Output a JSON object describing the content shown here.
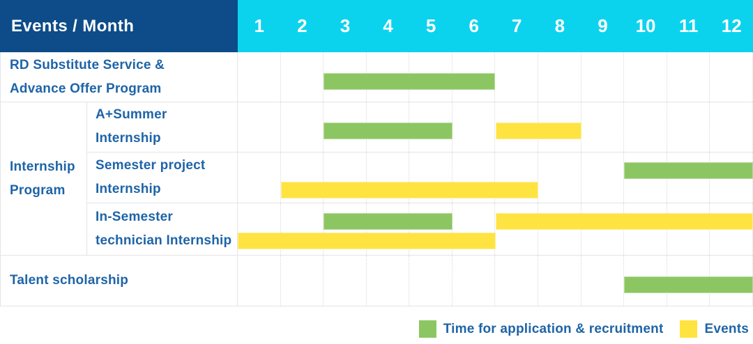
{
  "header": {
    "title": "Events / Month",
    "months": [
      "1",
      "2",
      "3",
      "4",
      "5",
      "6",
      "7",
      "8",
      "9",
      "10",
      "11",
      "12"
    ]
  },
  "legend": {
    "items": [
      {
        "key": "application",
        "label": "Time for application & recruitment",
        "color": "#8CC663"
      },
      {
        "key": "events",
        "label": "Events",
        "color": "#FFE340"
      }
    ]
  },
  "colors": {
    "header_bg": "#0D4C88",
    "months_bg": "#0BD3EE",
    "label_text": "#1E64A7",
    "bar_green": "#8CC663",
    "bar_yellow": "#FFE340",
    "grid_line": "#E4E4E4"
  },
  "chart_data": {
    "type": "gantt",
    "unit": "month",
    "x_domain": [
      1,
      12
    ],
    "x_ticks": [
      1,
      2,
      3,
      4,
      5,
      6,
      7,
      8,
      9,
      10,
      11,
      12
    ],
    "legend": {
      "green": "Time for application & recruitment",
      "yellow": "Events"
    },
    "groups": {
      "Internship Program": {
        "label_lines": [
          "Internship",
          "Program"
        ]
      }
    },
    "rows": [
      {
        "group": "",
        "label": "RD Substitute Service & Advance Offer Program",
        "label_lines": [
          "RD Substitute Service &",
          "Advance Offer Program"
        ],
        "lines": [
          [
            {
              "color": "green",
              "start_month": 3,
              "end_month": 6
            }
          ]
        ]
      },
      {
        "group": "Internship Program",
        "label": "A+Summer Internship",
        "label_lines": [
          "A+Summer",
          "Internship"
        ],
        "lines": [
          [
            {
              "color": "green",
              "start_month": 3,
              "end_month": 5
            },
            {
              "color": "yellow",
              "start_month": 7,
              "end_month": 8
            }
          ]
        ]
      },
      {
        "group": "Internship Program",
        "label": "Semester project Internship",
        "label_lines": [
          "Semester project",
          "Internship"
        ],
        "lines": [
          [
            {
              "color": "green",
              "start_month": 10,
              "end_month": 12
            }
          ],
          [
            {
              "color": "yellow",
              "start_month": 2,
              "end_month": 7
            }
          ]
        ]
      },
      {
        "group": "Internship Program",
        "label": "In-Semester technician Internship",
        "label_lines": [
          "In-Semester",
          "technician Internship"
        ],
        "lines": [
          [
            {
              "color": "green",
              "start_month": 3,
              "end_month": 5
            },
            {
              "color": "yellow",
              "start_month": 7,
              "end_month": 12
            }
          ],
          [
            {
              "color": "yellow",
              "start_month": 1,
              "end_month": 6
            }
          ]
        ]
      },
      {
        "group": "",
        "label": "Talent scholarship",
        "label_lines": [
          "Talent scholarship"
        ],
        "lines": [
          [
            {
              "color": "green",
              "start_month": 10,
              "end_month": 12
            }
          ]
        ]
      }
    ]
  }
}
